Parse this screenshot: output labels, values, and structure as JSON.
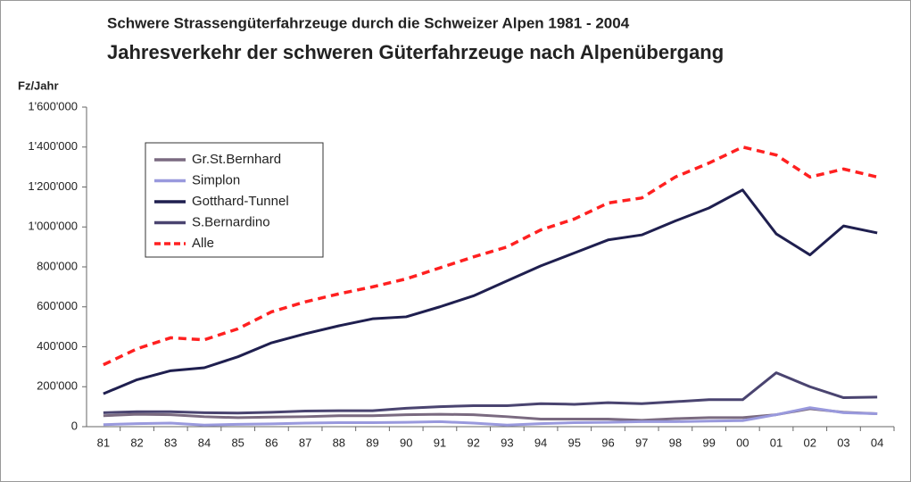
{
  "chart_data": {
    "type": "line",
    "title": "Schwere Strassengüterfahrzeuge durch die Schweizer Alpen 1981 - 2004",
    "subtitle": "Jahresverkehr der schweren Güterfahrzeuge nach Alpenübergang",
    "y_label": "Fz/Jahr",
    "categories": [
      "81",
      "82",
      "83",
      "84",
      "85",
      "86",
      "87",
      "88",
      "89",
      "90",
      "91",
      "92",
      "93",
      "94",
      "95",
      "96",
      "97",
      "98",
      "99",
      "00",
      "01",
      "02",
      "03",
      "04"
    ],
    "series": [
      {
        "name": "Gr.St.Bernhard",
        "color": "#7a6a80",
        "dashed": false,
        "values": [
          55000,
          62000,
          60000,
          50000,
          45000,
          48000,
          50000,
          55000,
          55000,
          60000,
          62000,
          60000,
          50000,
          38000,
          38000,
          38000,
          32000,
          40000,
          45000,
          45000,
          60000,
          90000,
          72000,
          65000
        ]
      },
      {
        "name": "Simplon",
        "color": "#9999dd",
        "dashed": false,
        "values": [
          10000,
          15000,
          18000,
          8000,
          12000,
          14000,
          18000,
          20000,
          20000,
          22000,
          25000,
          18000,
          8000,
          15000,
          20000,
          22000,
          25000,
          25000,
          28000,
          30000,
          60000,
          95000,
          70000,
          65000
        ]
      },
      {
        "name": "Gotthard-Tunnel",
        "color": "#1f1f4f",
        "dashed": false,
        "values": [
          165000,
          235000,
          280000,
          295000,
          350000,
          420000,
          465000,
          505000,
          540000,
          550000,
          600000,
          655000,
          730000,
          805000,
          870000,
          935000,
          960000,
          1030000,
          1095000,
          1185000,
          965000,
          860000,
          1005000,
          970000
        ]
      },
      {
        "name": "S.Bernardino",
        "color": "#4a4470",
        "dashed": false,
        "values": [
          70000,
          75000,
          75000,
          70000,
          68000,
          72000,
          78000,
          80000,
          80000,
          92000,
          100000,
          105000,
          105000,
          115000,
          112000,
          120000,
          115000,
          125000,
          135000,
          135000,
          270000,
          200000,
          145000,
          148000
        ]
      },
      {
        "name": "Alle",
        "color": "#ff2020",
        "dashed": true,
        "values": [
          310000,
          390000,
          445000,
          435000,
          490000,
          575000,
          625000,
          665000,
          700000,
          740000,
          795000,
          850000,
          900000,
          985000,
          1040000,
          1120000,
          1145000,
          1250000,
          1320000,
          1400000,
          1360000,
          1250000,
          1290000,
          1250000
        ]
      }
    ],
    "ylim": [
      0,
      1600000
    ],
    "yticks": [
      0,
      {
        "value": 200000,
        "label": "200'000"
      },
      {
        "value": 400000,
        "label": "400'000"
      },
      {
        "value": 600000,
        "label": "600'000"
      },
      {
        "value": 800000,
        "label": "800'000"
      },
      {
        "value": 1000000,
        "label": "1'000'000"
      },
      {
        "value": 1200000,
        "label": "1'200'000"
      },
      {
        "value": 1400000,
        "label": "1'400'000"
      },
      {
        "value": 1600000,
        "label": "1'600'000"
      }
    ],
    "grid": false,
    "legend": "upper left"
  }
}
